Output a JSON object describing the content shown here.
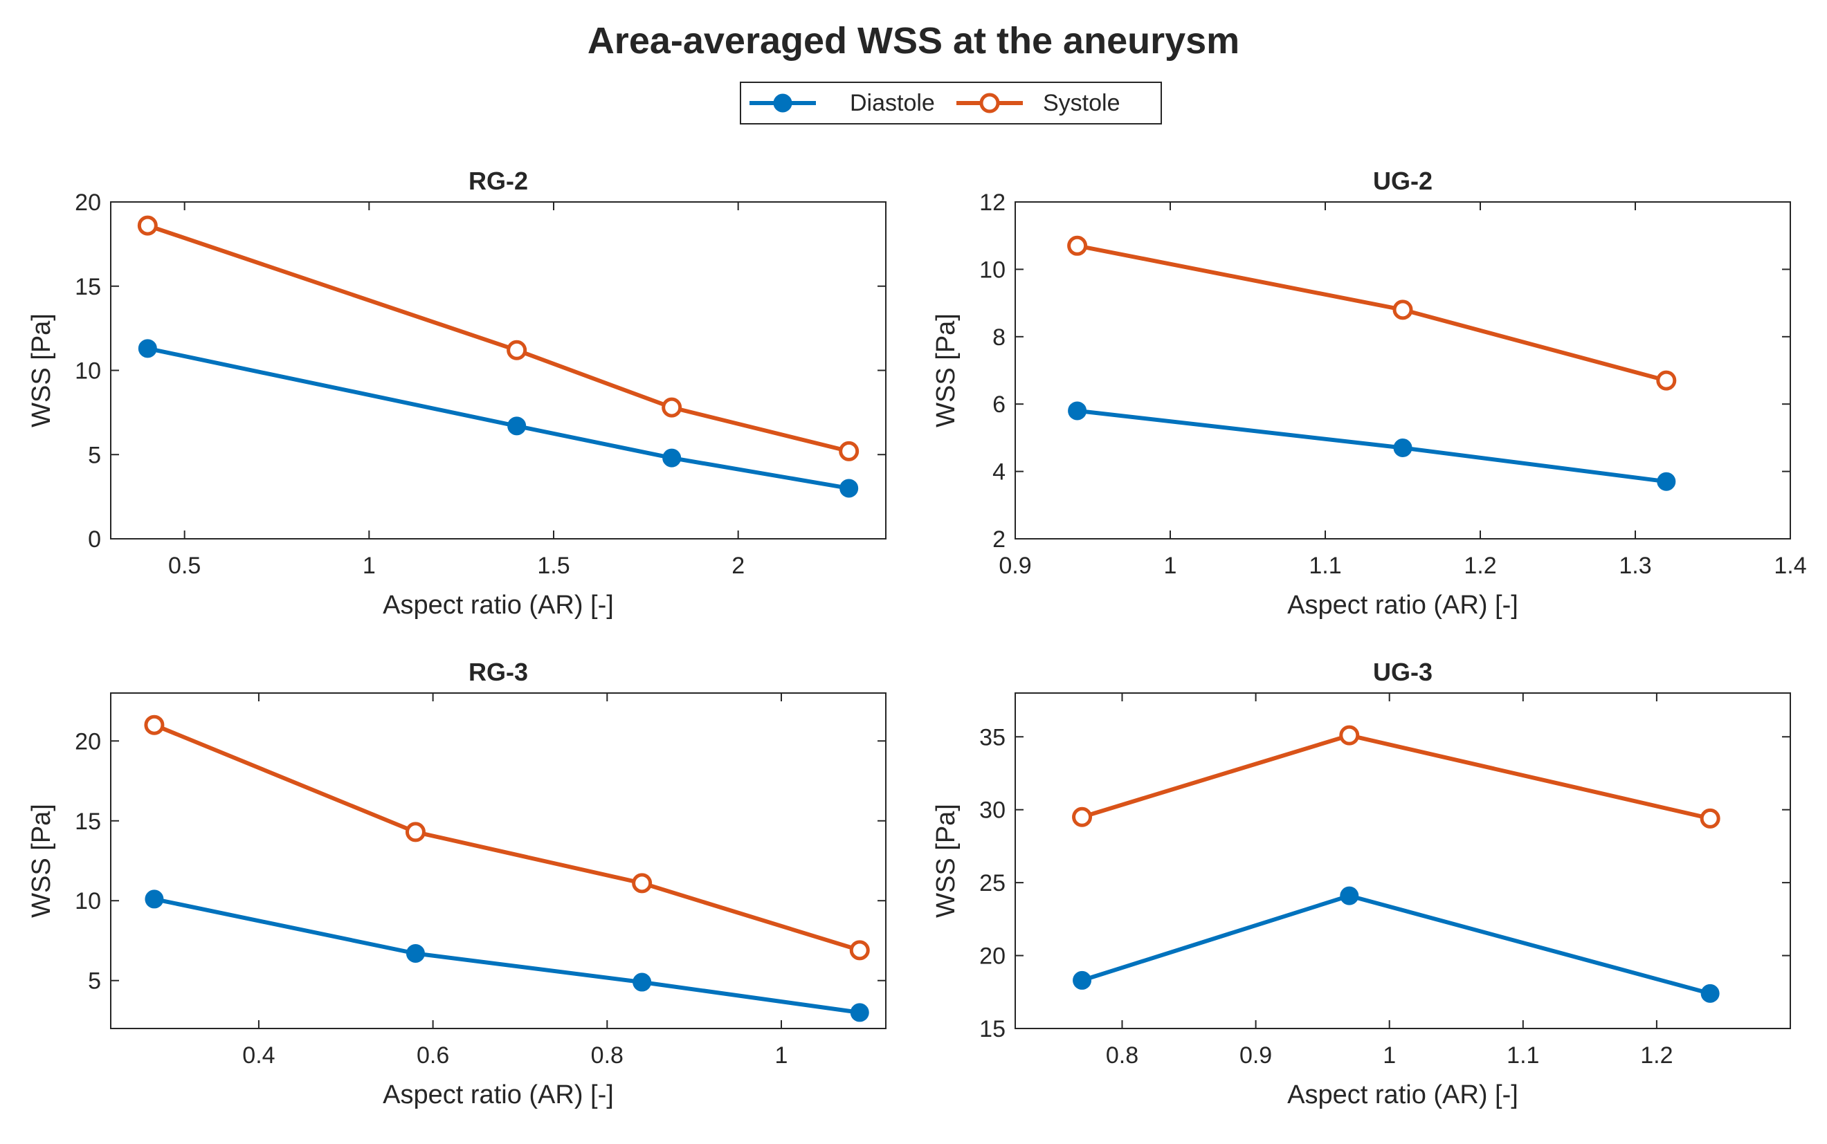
{
  "figure": {
    "title": "Area-averaged WSS at the aneurysm",
    "legend": [
      {
        "label": "Diastole",
        "color": "#0072BD",
        "marker": "filled-circle"
      },
      {
        "label": "Systole",
        "color": "#D95319",
        "marker": "open-circle"
      }
    ]
  },
  "chart_data": [
    {
      "type": "line",
      "title": "RG-2",
      "xlabel": "Aspect ratio (AR) [-]",
      "ylabel": "WSS [Pa]",
      "xlim": [
        0.3,
        2.4
      ],
      "ylim": [
        0,
        20
      ],
      "xticks": [
        0.5,
        1,
        1.5,
        2
      ],
      "xtick_labels": [
        "0.5",
        "1",
        "1.5",
        "2"
      ],
      "yticks": [
        0,
        5,
        10,
        15,
        20
      ],
      "ytick_labels": [
        "0",
        "5",
        "10",
        "15",
        "20"
      ],
      "x": [
        0.4,
        1.4,
        1.82,
        2.3
      ],
      "series": [
        {
          "name": "Diastole",
          "values": [
            11.3,
            6.7,
            4.8,
            3.0
          ]
        },
        {
          "name": "Systole",
          "values": [
            18.6,
            11.2,
            7.8,
            5.2
          ]
        }
      ]
    },
    {
      "type": "line",
      "title": "UG-2",
      "xlabel": "Aspect ratio (AR) [-]",
      "ylabel": "WSS [Pa]",
      "xlim": [
        0.9,
        1.4
      ],
      "ylim": [
        2,
        12
      ],
      "xticks": [
        0.9,
        1.0,
        1.1,
        1.2,
        1.3,
        1.4
      ],
      "xtick_labels": [
        "0.9",
        "1",
        "1.1",
        "1.2",
        "1.3",
        "1.4"
      ],
      "yticks": [
        2,
        4,
        6,
        8,
        10,
        12
      ],
      "ytick_labels": [
        "2",
        "4",
        "6",
        "8",
        "10",
        "12"
      ],
      "x": [
        0.94,
        1.15,
        1.32
      ],
      "series": [
        {
          "name": "Diastole",
          "values": [
            5.8,
            4.7,
            3.7
          ]
        },
        {
          "name": "Systole",
          "values": [
            10.7,
            8.8,
            6.7
          ]
        }
      ]
    },
    {
      "type": "line",
      "title": "RG-3",
      "xlabel": "Aspect ratio (AR) [-]",
      "ylabel": "WSS [Pa]",
      "xlim": [
        0.23,
        1.12
      ],
      "ylim": [
        2,
        23
      ],
      "xticks": [
        0.4,
        0.6,
        0.8,
        1.0
      ],
      "xtick_labels": [
        "0.4",
        "0.6",
        "0.8",
        "1"
      ],
      "yticks": [
        5,
        10,
        15,
        20
      ],
      "ytick_labels": [
        "5",
        "10",
        "15",
        "20"
      ],
      "x": [
        0.28,
        0.58,
        0.84,
        1.09
      ],
      "series": [
        {
          "name": "Diastole",
          "values": [
            10.1,
            6.7,
            4.9,
            3.0
          ]
        },
        {
          "name": "Systole",
          "values": [
            21.0,
            14.3,
            11.1,
            6.9
          ]
        }
      ]
    },
    {
      "type": "line",
      "title": "UG-3",
      "xlabel": "Aspect ratio (AR) [-]",
      "ylabel": "WSS [Pa]",
      "xlim": [
        0.72,
        1.3
      ],
      "ylim": [
        15,
        38
      ],
      "xticks": [
        0.8,
        0.9,
        1.0,
        1.1,
        1.2
      ],
      "xtick_labels": [
        "0.8",
        "0.9",
        "1",
        "1.1",
        "1.2"
      ],
      "yticks": [
        15,
        20,
        25,
        30,
        35
      ],
      "ytick_labels": [
        "15",
        "20",
        "25",
        "30",
        "35"
      ],
      "x": [
        0.77,
        0.97,
        1.24
      ],
      "series": [
        {
          "name": "Diastole",
          "values": [
            18.3,
            24.1,
            17.4
          ]
        },
        {
          "name": "Systole",
          "values": [
            29.5,
            35.1,
            29.4
          ]
        }
      ]
    }
  ]
}
